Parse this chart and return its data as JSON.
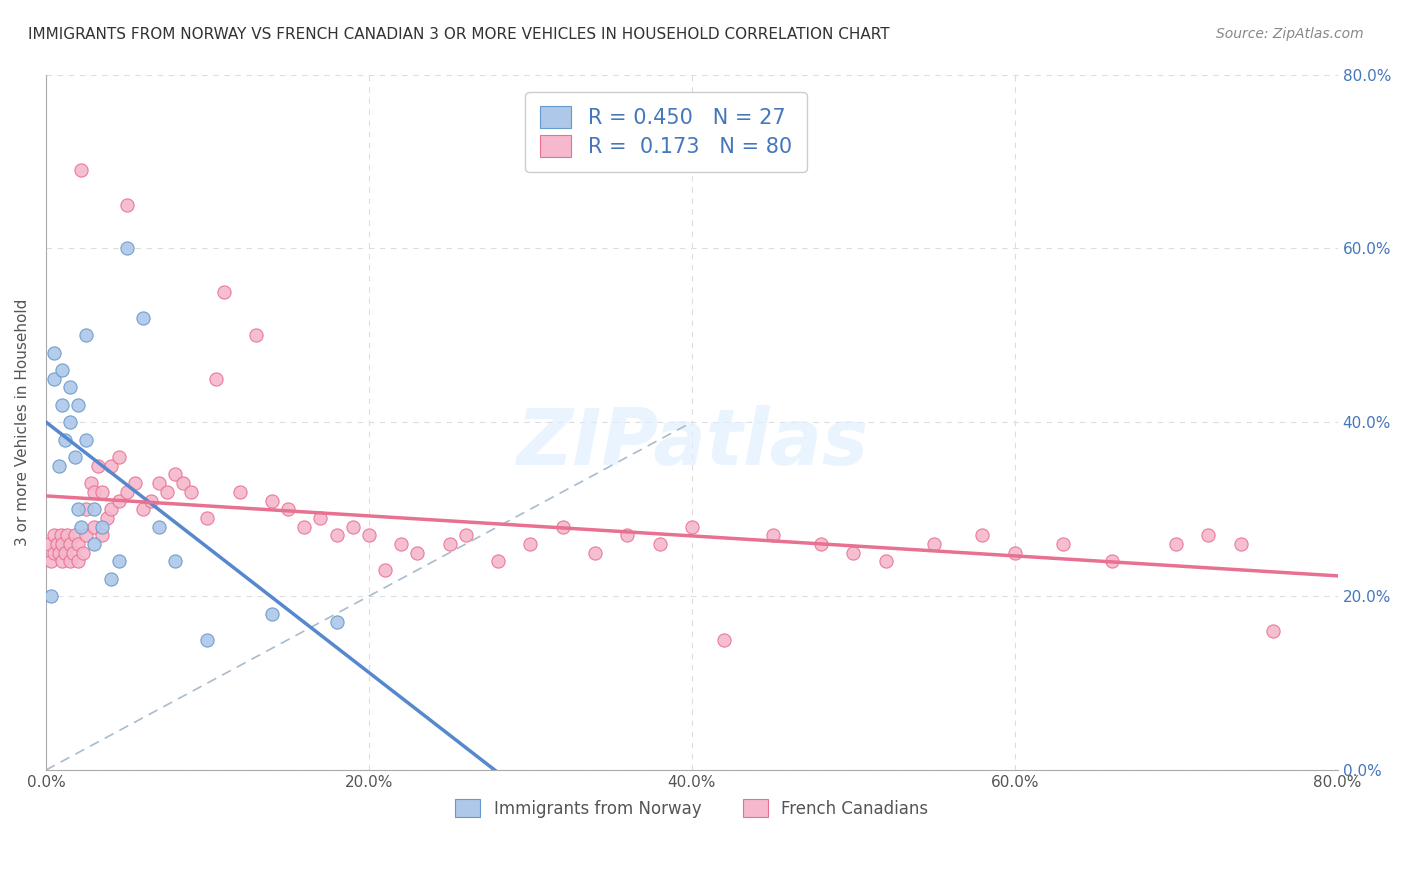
{
  "title": "IMMIGRANTS FROM NORWAY VS FRENCH CANADIAN 3 OR MORE VEHICLES IN HOUSEHOLD CORRELATION CHART",
  "source": "Source: ZipAtlas.com",
  "ylabel": "3 or more Vehicles in Household",
  "norway_color": "#adc8e8",
  "norway_edge": "#6699cc",
  "french_color": "#f5b8cc",
  "french_edge": "#e87090",
  "norway_R": 0.45,
  "norway_N": 27,
  "french_R": 0.173,
  "french_N": 80,
  "norway_line_color": "#5588cc",
  "french_line_color": "#e87090",
  "diag_color": "#aabbcc",
  "legend_label_norway": "Immigrants from Norway",
  "legend_label_french": "French Canadians",
  "norway_scatter_x": [
    0.3,
    0.5,
    0.5,
    0.8,
    1.0,
    1.0,
    1.2,
    1.5,
    1.5,
    1.8,
    2.0,
    2.0,
    2.2,
    2.5,
    2.5,
    3.0,
    3.0,
    3.5,
    4.0,
    4.5,
    5.0,
    6.0,
    7.0,
    8.0,
    10.0,
    14.0,
    18.0
  ],
  "norway_scatter_y": [
    20.0,
    45.0,
    48.0,
    35.0,
    42.0,
    46.0,
    38.0,
    40.0,
    44.0,
    36.0,
    30.0,
    42.0,
    28.0,
    38.0,
    50.0,
    26.0,
    30.0,
    28.0,
    22.0,
    24.0,
    60.0,
    52.0,
    28.0,
    24.0,
    15.0,
    18.0,
    17.0
  ],
  "french_scatter_x": [
    0.2,
    0.3,
    0.5,
    0.5,
    0.7,
    0.8,
    0.9,
    1.0,
    1.0,
    1.2,
    1.3,
    1.5,
    1.5,
    1.7,
    1.8,
    2.0,
    2.0,
    2.2,
    2.3,
    2.5,
    2.5,
    2.8,
    3.0,
    3.0,
    3.2,
    3.5,
    3.5,
    3.8,
    4.0,
    4.0,
    4.5,
    4.5,
    5.0,
    5.0,
    5.5,
    6.0,
    6.5,
    7.0,
    7.5,
    8.0,
    8.5,
    9.0,
    10.0,
    10.5,
    11.0,
    12.0,
    13.0,
    14.0,
    15.0,
    16.0,
    17.0,
    18.0,
    19.0,
    20.0,
    21.0,
    22.0,
    23.0,
    25.0,
    26.0,
    28.0,
    30.0,
    32.0,
    34.0,
    36.0,
    38.0,
    40.0,
    42.0,
    45.0,
    48.0,
    50.0,
    52.0,
    55.0,
    58.0,
    60.0,
    63.0,
    66.0,
    70.0,
    72.0,
    74.0,
    76.0
  ],
  "french_scatter_y": [
    26.0,
    24.0,
    27.0,
    25.0,
    26.0,
    25.0,
    27.0,
    24.0,
    26.0,
    25.0,
    27.0,
    24.0,
    26.0,
    25.0,
    27.0,
    24.0,
    26.0,
    69.0,
    25.0,
    27.0,
    30.0,
    33.0,
    28.0,
    32.0,
    35.0,
    27.0,
    32.0,
    29.0,
    35.0,
    30.0,
    36.0,
    31.0,
    32.0,
    65.0,
    33.0,
    30.0,
    31.0,
    33.0,
    32.0,
    34.0,
    33.0,
    32.0,
    29.0,
    45.0,
    55.0,
    32.0,
    50.0,
    31.0,
    30.0,
    28.0,
    29.0,
    27.0,
    28.0,
    27.0,
    23.0,
    26.0,
    25.0,
    26.0,
    27.0,
    24.0,
    26.0,
    28.0,
    25.0,
    27.0,
    26.0,
    28.0,
    15.0,
    27.0,
    26.0,
    25.0,
    24.0,
    26.0,
    27.0,
    25.0,
    26.0,
    24.0,
    26.0,
    27.0,
    26.0,
    16.0
  ],
  "xmin": 0.0,
  "xmax": 80.0,
  "ymin": 0.0,
  "ymax": 80.0,
  "xtick_vals": [
    0.0,
    20.0,
    40.0,
    60.0,
    80.0
  ],
  "xtick_labels": [
    "0.0%",
    "20.0%",
    "40.0%",
    "60.0%",
    "80.0%"
  ],
  "ytick_vals": [
    0.0,
    20.0,
    40.0,
    60.0,
    80.0
  ],
  "ytick_labels": [
    "0.0%",
    "20.0%",
    "40.0%",
    "60.0%",
    "80.0%"
  ]
}
